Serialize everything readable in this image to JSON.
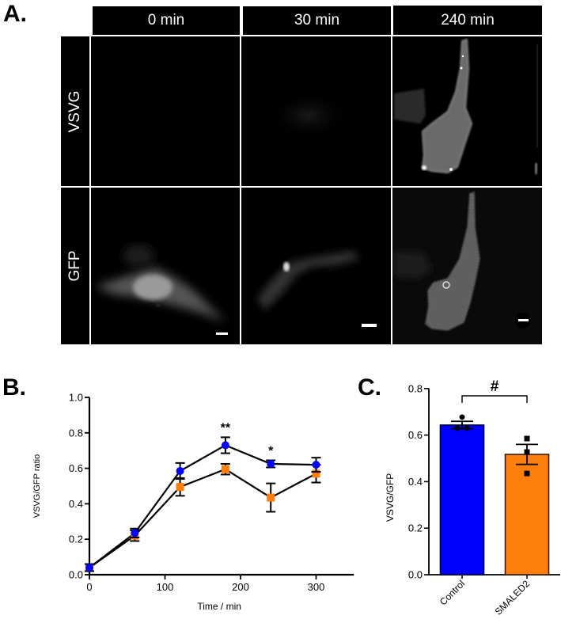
{
  "panel_a": {
    "letter": "A.",
    "columns": [
      "0 min",
      "30 min",
      "240 min"
    ],
    "rows": [
      "VSVG",
      "GFP"
    ]
  },
  "panel_b": {
    "letter": "B."
  },
  "panel_c": {
    "letter": "C."
  },
  "chart_data": [
    {
      "type": "line",
      "panel": "B",
      "title": "",
      "xlabel": "Time / min",
      "ylabel": "VSVG/GFP ratio",
      "xlim": [
        0,
        350
      ],
      "ylim": [
        0,
        1.0
      ],
      "xticks": [
        0,
        100,
        200,
        300
      ],
      "yticks": [
        "0.0",
        "0.2",
        "0.4",
        "0.6",
        "0.8",
        "1.0"
      ],
      "grid": false,
      "x": [
        0,
        60,
        120,
        180,
        240,
        300
      ],
      "series": [
        {
          "name": "Control",
          "color": "#0000ff",
          "marker": "circle",
          "values": [
            0.04,
            0.235,
            0.585,
            0.73,
            0.625,
            0.62
          ],
          "error": [
            0.02,
            0.025,
            0.045,
            0.045,
            0.02,
            0.04
          ]
        },
        {
          "name": "SMALED2",
          "color": "#ff7f0e",
          "marker": "square",
          "values": [
            0.04,
            0.22,
            0.495,
            0.595,
            0.435,
            0.57
          ],
          "error": [
            0.02,
            0.03,
            0.05,
            0.03,
            0.08,
            0.05
          ]
        }
      ],
      "annotations": [
        {
          "x": 180,
          "y": 0.86,
          "text": "**"
        },
        {
          "x": 240,
          "y": 0.73,
          "text": "*"
        }
      ]
    },
    {
      "type": "bar",
      "panel": "C",
      "title": "",
      "xlabel": "",
      "ylabel": "VSVG/GFP",
      "ylim": [
        0,
        0.8
      ],
      "yticks": [
        "0.0",
        "0.2",
        "0.4",
        "0.6",
        "0.8"
      ],
      "categories": [
        "Control",
        "SMALED2"
      ],
      "values": [
        0.643,
        0.517
      ],
      "error": [
        0.016,
        0.043
      ],
      "colors": [
        "#0000ff",
        "#ff7f0e"
      ],
      "points": [
        [
          0.677,
          0.63,
          0.63
        ],
        [
          0.585,
          0.527,
          0.435
        ]
      ],
      "significance": {
        "between": [
          "Control",
          "SMALED2"
        ],
        "text": "#"
      }
    }
  ]
}
